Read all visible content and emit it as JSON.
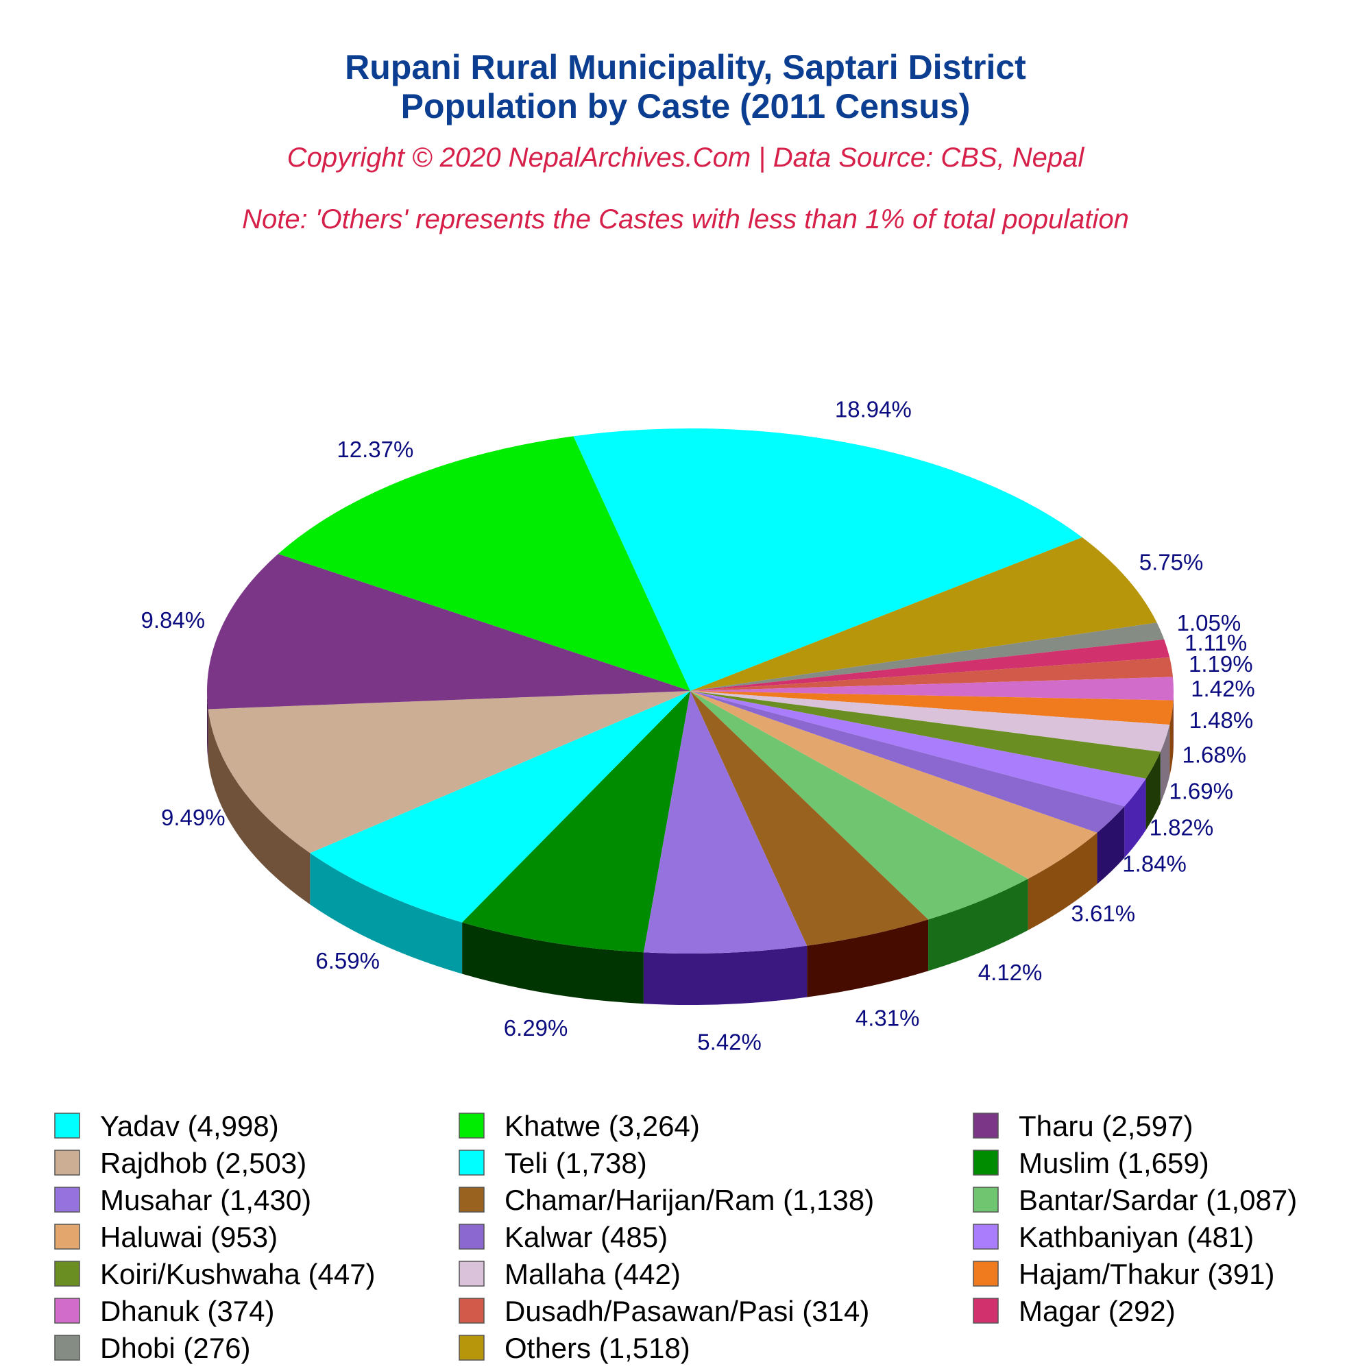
{
  "header": {
    "title_line1": "Rupani Rural Municipality, Saptari District",
    "title_line2": "Population by Caste (2011 Census)",
    "copyright": "Copyright © 2020 NepalArchives.Com | Data Source: CBS, Nepal",
    "note": "Note: 'Others' represents the Castes with less than 1% of total population"
  },
  "chart_data": {
    "type": "pie",
    "style": "3d-tilted",
    "slices": [
      {
        "label": "Yadav",
        "value": 4998,
        "percent": "18.94%",
        "legend": "Yadav (4,998)",
        "color": "#00ffff",
        "side": "#009aa0"
      },
      {
        "label": "Others",
        "value": 1518,
        "percent": "5.75%",
        "legend": "Others (1,518)",
        "color": "#b8960c",
        "side": "#6d5a06"
      },
      {
        "label": "Dhobi",
        "value": 276,
        "percent": "1.05%",
        "legend": "Dhobi (276)",
        "color": "#848c84",
        "side": "#4f554f"
      },
      {
        "label": "Magar",
        "value": 292,
        "percent": "1.11%",
        "legend": "Magar (292)",
        "color": "#d1326e",
        "side": "#7a1d41"
      },
      {
        "label": "Dusadh/Pasawan/Pasi",
        "value": 314,
        "percent": "1.19%",
        "legend": "Dusadh/Pasawan/Pasi (314)",
        "color": "#d25a4a",
        "side": "#7a332a"
      },
      {
        "label": "Dhanuk",
        "value": 374,
        "percent": "1.42%",
        "legend": "Dhanuk (374)",
        "color": "#d16ccb",
        "side": "#7a3f76"
      },
      {
        "label": "Hajam/Thakur",
        "value": 391,
        "percent": "1.48%",
        "legend": "Hajam/Thakur (391)",
        "color": "#f07b1e",
        "side": "#8a4610"
      },
      {
        "label": "Mallaha",
        "value": 442,
        "percent": "1.68%",
        "legend": "Mallaha (442)",
        "color": "#d9c2da",
        "side": "#7f717f"
      },
      {
        "label": "Koiri/Kushwaha",
        "value": 447,
        "percent": "1.69%",
        "legend": "Koiri/Kushwaha (447)",
        "color": "#6b8e23",
        "side": "#1f3a06"
      },
      {
        "label": "Kathbaniyan",
        "value": 481,
        "percent": "1.82%",
        "legend": "Kathbaniyan (481)",
        "color": "#a97dfb",
        "side": "#4b23b0"
      },
      {
        "label": "Kalwar",
        "value": 485,
        "percent": "1.84%",
        "legend": "Kalwar (485)",
        "color": "#8a68cf",
        "side": "#2a0f6a"
      },
      {
        "label": "Haluwai",
        "value": 953,
        "percent": "3.61%",
        "legend": "Haluwai (953)",
        "color": "#e3a76e",
        "side": "#8a4e10"
      },
      {
        "label": "Bantar/Sardar",
        "value": 1087,
        "percent": "4.12%",
        "legend": "Bantar/Sardar (1,087)",
        "color": "#70c670",
        "side": "#186d18"
      },
      {
        "label": "Chamar/Harijan/Ram",
        "value": 1138,
        "percent": "4.31%",
        "legend": "Chamar/Harijan/Ram (1,138)",
        "color": "#99621e",
        "side": "#460c00"
      },
      {
        "label": "Musahar",
        "value": 1430,
        "percent": "5.42%",
        "legend": "Musahar (1,430)",
        "color": "#9572de",
        "side": "#3a1880"
      },
      {
        "label": "Muslim",
        "value": 1659,
        "percent": "6.29%",
        "legend": "Muslim (1,659)",
        "color": "#008c00",
        "side": "#003400"
      },
      {
        "label": "Teli",
        "value": 1738,
        "percent": "6.59%",
        "legend": "Teli (1,738)",
        "color": "#00ffff",
        "side": "#009ba3"
      },
      {
        "label": "Rajdhob",
        "value": 2503,
        "percent": "9.49%",
        "legend": "Rajdhob (2,503)",
        "color": "#cbae94",
        "side": "#70523a"
      },
      {
        "label": "Tharu",
        "value": 2597,
        "percent": "9.84%",
        "legend": "Tharu (2,597)",
        "color": "#7b3688",
        "side": "#4a1f52"
      },
      {
        "label": "Khatwe",
        "value": 3264,
        "percent": "12.37%",
        "legend": "Khatwe (3,264)",
        "color": "#00ec00",
        "side": "#008a00"
      }
    ],
    "legend_order": [
      "Yadav",
      "Khatwe",
      "Tharu",
      "Rajdhob",
      "Teli",
      "Muslim",
      "Musahar",
      "Chamar/Harijan/Ram",
      "Bantar/Sardar",
      "Haluwai",
      "Kalwar",
      "Kathbaniyan",
      "Koiri/Kushwaha",
      "Mallaha",
      "Hajam/Thakur",
      "Dhanuk",
      "Dusadh/Pasawan/Pasi",
      "Magar",
      "Dhobi",
      "Others"
    ],
    "legend_columns": 3
  }
}
